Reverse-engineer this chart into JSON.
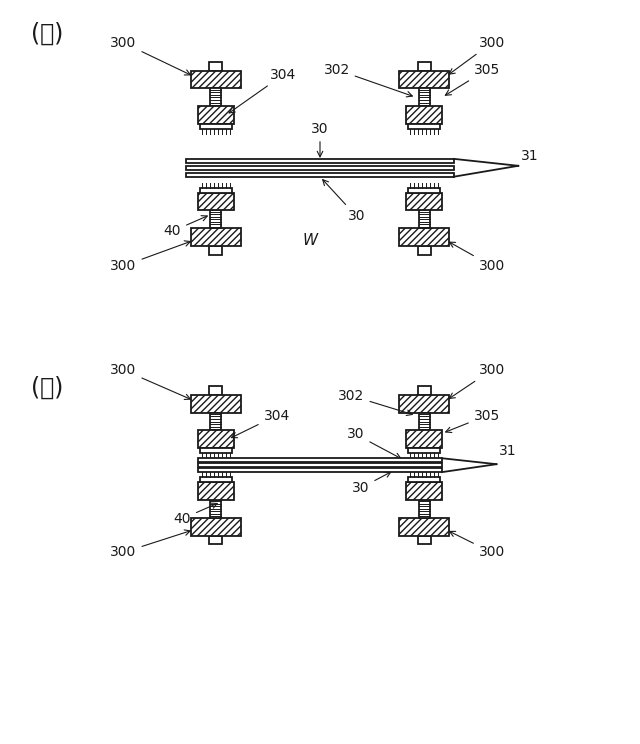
{
  "bg_color": "#ffffff",
  "line_color": "#1a1a1a",
  "label_A": "(Ａ)",
  "label_B": "(Ｂ)",
  "fig_width": 6.4,
  "fig_height": 7.44,
  "dpi": 100
}
